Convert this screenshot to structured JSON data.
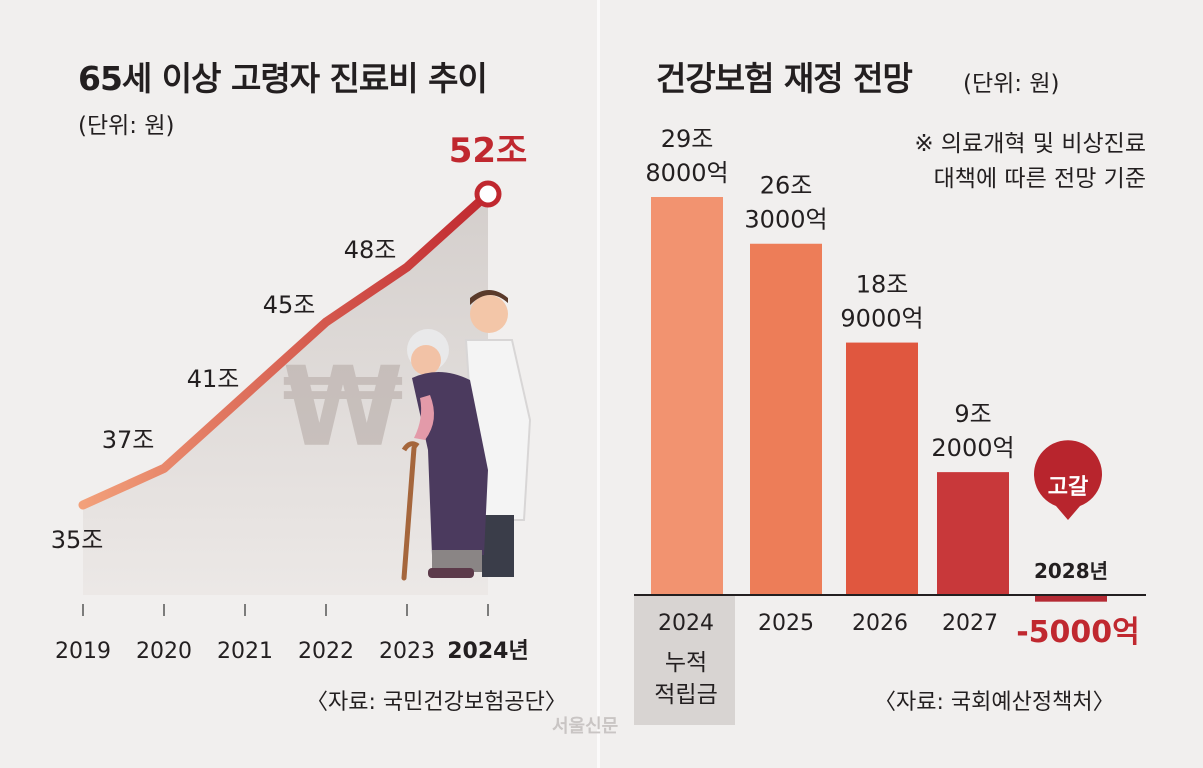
{
  "left": {
    "title": "65세 이상 고령자 진료비 추이",
    "unit": "(단위: 원)",
    "source": "〈자료: 국민건강보험공단〉",
    "highlight_color": "#c0282f",
    "line_color": "#e5634a"
  },
  "right": {
    "title": "건강보험 재정 전망",
    "unit": "(단위: 원)",
    "note_line1": "※ 의료개혁 및 비상진료",
    "note_line2": "대책에 따른 전망 기준",
    "source": "〈자료: 국회예산정책처〉",
    "cumulative_label_line1": "누적",
    "cumulative_label_line2": "적립금",
    "depletion_badge": "고갈",
    "depletion_year": "2028년",
    "depletion_value": "-5000억"
  },
  "watermark": "서울신문",
  "chart_data": [
    {
      "type": "line",
      "title": "65세 이상 고령자 진료비 추이",
      "unit": "(단위: 원)",
      "x": [
        "2019",
        "2020",
        "2021",
        "2022",
        "2023",
        "2024년"
      ],
      "y": [
        35,
        37,
        41,
        45,
        48,
        52
      ],
      "labels": [
        "35조",
        "37조",
        "41조",
        "45조",
        "48조",
        "52조"
      ],
      "ylim": [
        30,
        52
      ]
    },
    {
      "type": "bar",
      "title": "건강보험 재정 전망",
      "unit": "(단위: 원)",
      "categories": [
        "2024",
        "2025",
        "2026",
        "2027",
        "2028년"
      ],
      "values": [
        29.8,
        26.3,
        18.9,
        9.2,
        -0.5
      ],
      "labels_line1": [
        "29조",
        "26조",
        "18조",
        "9조",
        ""
      ],
      "labels_line2": [
        "8000억",
        "3000억",
        "9000억",
        "2000억",
        ""
      ],
      "colors": [
        "#f29370",
        "#ed7d58",
        "#e0573f",
        "#c8383a",
        "#b52a34"
      ]
    }
  ]
}
